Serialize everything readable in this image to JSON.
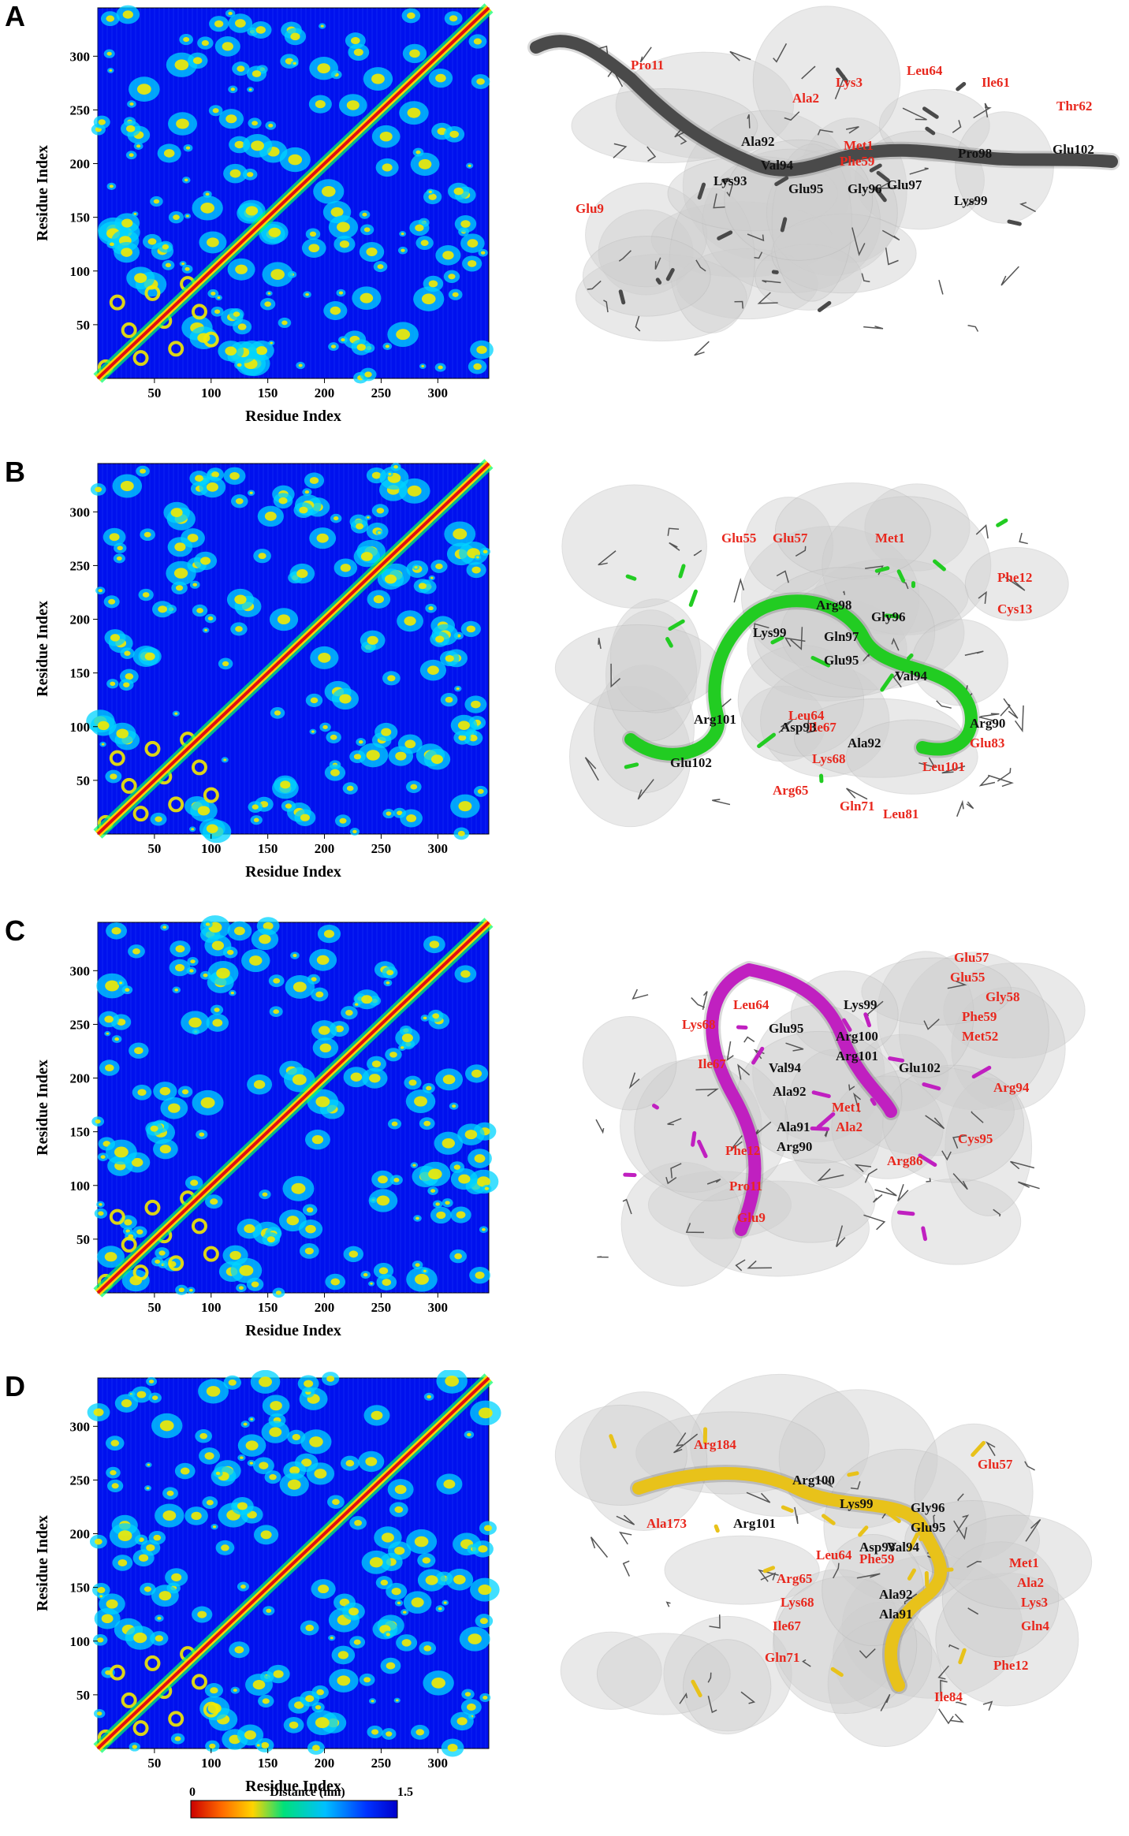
{
  "colorbar": {
    "min_label": "0",
    "max_label": "1.5",
    "title": "Distance (nm)",
    "colors": [
      "#cc0000",
      "#ff6a00",
      "#ffd400",
      "#00e07a",
      "#00c0ff",
      "#0033ff",
      "#0000cc"
    ]
  },
  "contact_map": {
    "x_label": "Residue Index",
    "y_label": "Residue Index",
    "x_ticks": [
      "50",
      "100",
      "150",
      "200",
      "250",
      "300"
    ],
    "y_ticks": [
      "50",
      "100",
      "150",
      "200",
      "250",
      "300"
    ],
    "background": "#0011ee",
    "diagonal_color": "#e01010",
    "contact_color": "#00d4ff",
    "hot_color": "#f3ea00"
  },
  "panels": [
    {
      "id": "A",
      "ribbon_color": "#4a4a4a",
      "red_labels": [
        "Pro11",
        "Ala2",
        "Lys3",
        "Leu64",
        "Ile61",
        "Thr62",
        "Met1",
        "Phe59",
        "Glu9"
      ],
      "black_labels": [
        "Ala92",
        "Val94",
        "Lys93",
        "Glu95",
        "Gly96",
        "Glu97",
        "Pro98",
        "Glu102",
        "Lys99"
      ]
    },
    {
      "id": "B",
      "ribbon_color": "#22cc22",
      "red_labels": [
        "Glu55",
        "Glu57",
        "Met1",
        "Phe12",
        "Cys13",
        "Leu64",
        "Ile67",
        "Lys68",
        "Arg65",
        "Gln71",
        "Leu81",
        "Leu101",
        "Glu83"
      ],
      "black_labels": [
        "Arg98",
        "Gly96",
        "Lys99",
        "Gln97",
        "Glu95",
        "Val94",
        "Arg101",
        "Asp93",
        "Glu102",
        "Ala92",
        "Arg90"
      ]
    },
    {
      "id": "C",
      "ribbon_color": "#c020c0",
      "red_labels": [
        "Glu57",
        "Glu55",
        "Gly58",
        "Leu64",
        "Phe59",
        "Lys68",
        "Met52",
        "Ile67",
        "Arg94",
        "Met1",
        "Ala2",
        "Cys95",
        "Phe12",
        "Arg86",
        "Pro11",
        "Glu9"
      ],
      "black_labels": [
        "Lys99",
        "Glu95",
        "Arg100",
        "Arg101",
        "Val94",
        "Glu102",
        "Ala92",
        "Ala91",
        "Arg90"
      ]
    },
    {
      "id": "D",
      "ribbon_color": "#e8c21a",
      "red_labels": [
        "Arg184",
        "Glu57",
        "Ala173",
        "Leu64",
        "Phe59",
        "Met1",
        "Arg65",
        "Ala2",
        "Lys68",
        "Lys3",
        "Ile67",
        "Gln4",
        "Gln71",
        "Phe12",
        "Ile84"
      ],
      "black_labels": [
        "Arg100",
        "Lys99",
        "Gly96",
        "Arg101",
        "Glu95",
        "Val94",
        "Asp93",
        "Ala92",
        "Ala91"
      ]
    }
  ]
}
